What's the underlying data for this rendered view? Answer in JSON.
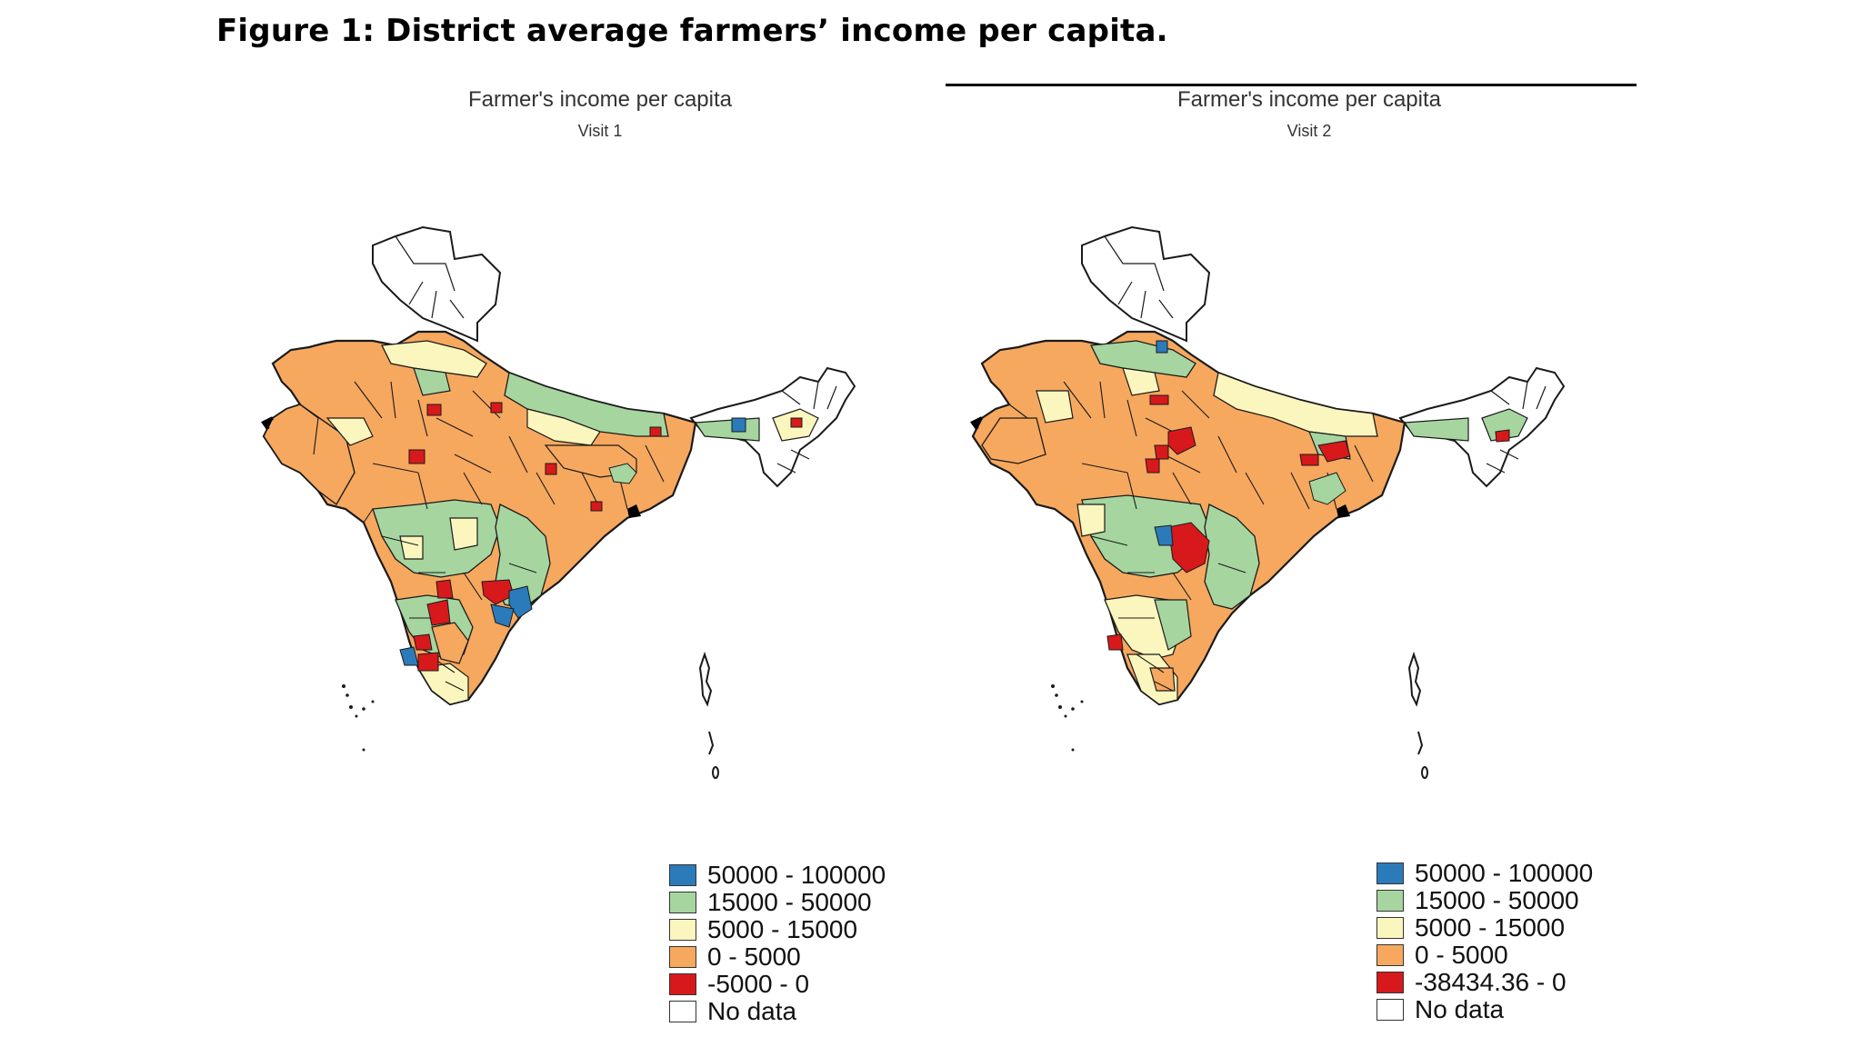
{
  "figure_title": "Figure 1: District average farmers’ income per capita.",
  "colors": {
    "blue": "#2b7bba",
    "green": "#a6d5a0",
    "yellow": "#fbf6be",
    "orange": "#f6a85f",
    "red": "#d7191c",
    "white": "#ffffff",
    "border": "#1a1a1a"
  },
  "maps": [
    {
      "title": "Farmer's income per capita",
      "subtitle": "Visit 1",
      "legend": [
        {
          "label": "50000 - 100000",
          "color": "#2b7bba"
        },
        {
          "label": "15000 - 50000",
          "color": "#a6d5a0"
        },
        {
          "label": "5000 - 15000",
          "color": "#fbf6be"
        },
        {
          "label": "0 - 5000",
          "color": "#f6a85f"
        },
        {
          "label": "-5000 - 0",
          "color": "#d7191c"
        },
        {
          "label": "No data",
          "color": "#ffffff"
        }
      ]
    },
    {
      "title": "Farmer's income per capita",
      "subtitle": "Visit 2",
      "legend": [
        {
          "label": "50000 - 100000",
          "color": "#2b7bba"
        },
        {
          "label": "15000 - 50000",
          "color": "#a6d5a0"
        },
        {
          "label": "5000 - 15000",
          "color": "#fbf6be"
        },
        {
          "label": "0 - 5000",
          "color": "#f6a85f"
        },
        {
          "label": "-38434.36 - 0",
          "color": "#d7191c"
        },
        {
          "label": "No data",
          "color": "#ffffff"
        }
      ]
    }
  ]
}
